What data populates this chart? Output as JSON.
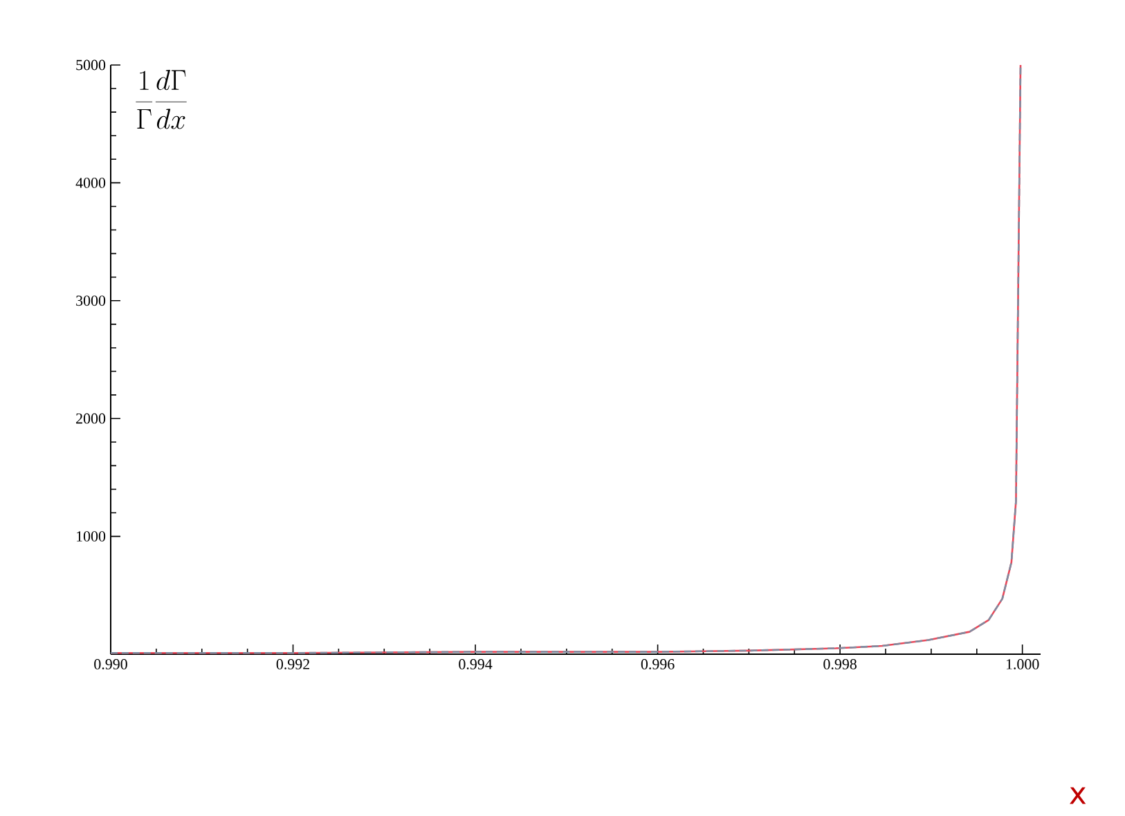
{
  "chart_data": {
    "type": "line",
    "ylabel": "\\frac{1}{\\Gamma}\\frac{d\\Gamma}{dx}",
    "xlabel": "x",
    "x": [
      0.99,
      0.992,
      0.994,
      0.996,
      0.997,
      0.99795,
      0.99846,
      0.99897,
      0.99942,
      0.99963,
      0.99978,
      0.99988,
      0.99993,
      0.99998
    ],
    "series": [
      {
        "color": "#e8485a",
        "line_style": "solid",
        "values": [
          10,
          10,
          20,
          20,
          30,
          50,
          70,
          120,
          190,
          290,
          470,
          780,
          1300,
          5000
        ]
      },
      {
        "color": "#7f8ca0",
        "line_style": "dashed",
        "values": [
          10,
          10,
          20,
          20,
          30,
          50,
          70,
          120,
          190,
          290,
          470,
          780,
          1300,
          5000
        ]
      }
    ],
    "xlim": [
      0.99,
      1.0002
    ],
    "ylim": [
      0,
      5000
    ],
    "xticks": [
      {
        "value": 0.99,
        "label": "0.990"
      },
      {
        "value": 0.992,
        "label": "0.992"
      },
      {
        "value": 0.994,
        "label": "0.994"
      },
      {
        "value": 0.996,
        "label": "0.996"
      },
      {
        "value": 0.998,
        "label": "0.998"
      },
      {
        "value": 1.0,
        "label": "1.000"
      }
    ],
    "yticks": [
      1000,
      2000,
      3000,
      4000,
      5000
    ],
    "grid": false,
    "legend": false
  }
}
